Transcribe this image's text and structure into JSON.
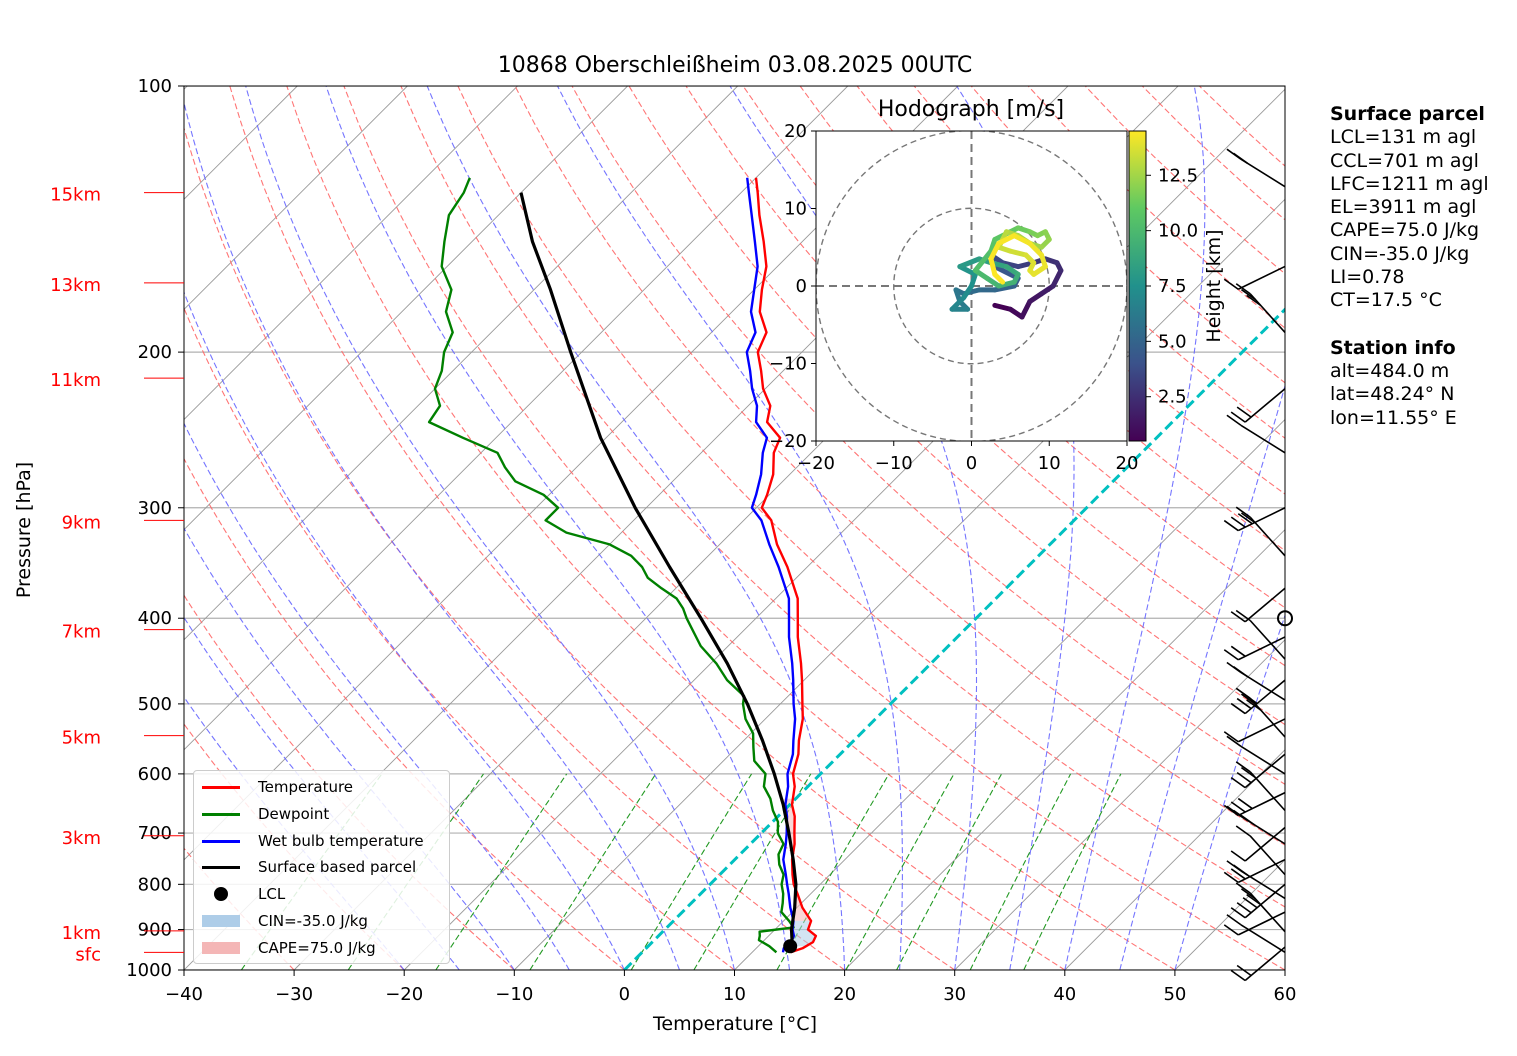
{
  "chart_data": {
    "type": "line",
    "title": "10868 Oberschleißheim 03.08.2025 00UTC",
    "xlabel": "Temperature [°C]",
    "ylabel": "Pressure [hPa]",
    "xlim": [
      -40,
      60
    ],
    "ylim": [
      1000,
      100
    ],
    "y_scale": "log",
    "skew": "skew-T log-p",
    "x_ticks": [
      -40,
      -30,
      -20,
      -10,
      0,
      10,
      20,
      30,
      40,
      50,
      60
    ],
    "x_tick_labels": [
      "−40",
      "−30",
      "−20",
      "−10",
      "0",
      "10",
      "20",
      "30",
      "40",
      "50",
      "60"
    ],
    "y_ticks": [
      100,
      200,
      300,
      400,
      500,
      600,
      700,
      800,
      900,
      1000
    ],
    "y_tick_labels": [
      "100",
      "200",
      "300",
      "400",
      "500",
      "600",
      "700",
      "800",
      "900",
      "1000"
    ],
    "height_labels": [
      {
        "label": "15km",
        "p": 132
      },
      {
        "label": "13km",
        "p": 167
      },
      {
        "label": "11km",
        "p": 214
      },
      {
        "label": "9km",
        "p": 310
      },
      {
        "label": "7km",
        "p": 412
      },
      {
        "label": "5km",
        "p": 543
      },
      {
        "label": "3km",
        "p": 705
      },
      {
        "label": "1km",
        "p": 903
      },
      {
        "label": "sfc",
        "p": 955
      }
    ],
    "grid": true,
    "legend_position": "lower-left",
    "legend": [
      {
        "label": "Temperature",
        "color": "#ff0000",
        "kind": "line"
      },
      {
        "label": "Dewpoint",
        "color": "#008000",
        "kind": "line"
      },
      {
        "label": "Wet bulb temperature",
        "color": "#0000ff",
        "kind": "line"
      },
      {
        "label": "Surface based parcel",
        "color": "#000000",
        "kind": "line"
      },
      {
        "label": "LCL",
        "color": "#000000",
        "kind": "dot"
      },
      {
        "label": "CIN=-35.0 J/kg",
        "color": "#aecde8",
        "kind": "patch"
      },
      {
        "label": "CAPE=75.0 J/kg",
        "color": "#f4b6b6",
        "kind": "patch"
      }
    ],
    "series": [
      {
        "name": "Temperature",
        "color": "#ff0000",
        "points": [
          [
            955,
            13.5
          ],
          [
            945,
            14.2
          ],
          [
            930,
            14.6
          ],
          [
            915,
            14.3
          ],
          [
            900,
            13.0
          ],
          [
            880,
            12.5
          ],
          [
            850,
            10.5
          ],
          [
            820,
            8.8
          ],
          [
            800,
            7.6
          ],
          [
            780,
            6.6
          ],
          [
            750,
            5.2
          ],
          [
            720,
            4.0
          ],
          [
            700,
            3.0
          ],
          [
            670,
            1.5
          ],
          [
            650,
            0.2
          ],
          [
            620,
            -1.2
          ],
          [
            600,
            -2.5
          ],
          [
            570,
            -3.8
          ],
          [
            550,
            -5.0
          ],
          [
            520,
            -6.6
          ],
          [
            500,
            -8.0
          ],
          [
            470,
            -10.2
          ],
          [
            450,
            -11.8
          ],
          [
            420,
            -14.5
          ],
          [
            400,
            -16.2
          ],
          [
            380,
            -18.0
          ],
          [
            350,
            -21.8
          ],
          [
            330,
            -24.8
          ],
          [
            310,
            -27.5
          ],
          [
            300,
            -29.5
          ],
          [
            290,
            -30.2
          ],
          [
            275,
            -31.5
          ],
          [
            260,
            -33.4
          ],
          [
            250,
            -34.2
          ],
          [
            240,
            -36.8
          ],
          [
            230,
            -38.0
          ],
          [
            220,
            -40.2
          ],
          [
            210,
            -42.0
          ],
          [
            200,
            -44.0
          ],
          [
            190,
            -45.0
          ],
          [
            180,
            -47.5
          ],
          [
            170,
            -49.3
          ],
          [
            160,
            -51.0
          ],
          [
            150,
            -53.5
          ],
          [
            140,
            -56.3
          ],
          [
            132,
            -58.5
          ],
          [
            127,
            -60.0
          ]
        ]
      },
      {
        "name": "Dewpoint",
        "color": "#008000",
        "points": [
          [
            955,
            12.2
          ],
          [
            940,
            11.0
          ],
          [
            925,
            9.5
          ],
          [
            915,
            9.2
          ],
          [
            905,
            8.8
          ],
          [
            895,
            11.5
          ],
          [
            880,
            10.5
          ],
          [
            860,
            9.0
          ],
          [
            840,
            8.3
          ],
          [
            820,
            7.5
          ],
          [
            800,
            6.5
          ],
          [
            780,
            5.8
          ],
          [
            760,
            4.5
          ],
          [
            740,
            3.5
          ],
          [
            720,
            3.0
          ],
          [
            700,
            1.5
          ],
          [
            680,
            0.5
          ],
          [
            660,
            -1.0
          ],
          [
            640,
            -2.3
          ],
          [
            620,
            -4.0
          ],
          [
            600,
            -5.0
          ],
          [
            580,
            -7.2
          ],
          [
            560,
            -8.5
          ],
          [
            540,
            -9.8
          ],
          [
            520,
            -11.8
          ],
          [
            500,
            -13.4
          ],
          [
            490,
            -14.0
          ],
          [
            470,
            -17.0
          ],
          [
            450,
            -19.5
          ],
          [
            430,
            -22.5
          ],
          [
            410,
            -25.0
          ],
          [
            400,
            -26.3
          ],
          [
            390,
            -27.5
          ],
          [
            380,
            -29.0
          ],
          [
            370,
            -31.3
          ],
          [
            360,
            -33.5
          ],
          [
            350,
            -35.0
          ],
          [
            340,
            -37.0
          ],
          [
            330,
            -40.0
          ],
          [
            320,
            -45.0
          ],
          [
            310,
            -48.0
          ],
          [
            300,
            -48.0
          ],
          [
            290,
            -50.5
          ],
          [
            280,
            -54.3
          ],
          [
            270,
            -56.5
          ],
          [
            260,
            -58.5
          ],
          [
            250,
            -63.0
          ],
          [
            240,
            -67.5
          ],
          [
            230,
            -68.0
          ],
          [
            220,
            -70.0
          ],
          [
            210,
            -71.0
          ],
          [
            200,
            -72.5
          ],
          [
            190,
            -73.5
          ],
          [
            180,
            -76.0
          ],
          [
            170,
            -77.5
          ],
          [
            160,
            -80.5
          ],
          [
            150,
            -82.5
          ],
          [
            140,
            -84.5
          ],
          [
            132,
            -85.2
          ],
          [
            127,
            -86.0
          ]
        ]
      },
      {
        "name": "Wet bulb temperature",
        "color": "#0000ff",
        "points": [
          [
            955,
            12.8
          ],
          [
            945,
            12.5
          ],
          [
            930,
            12.6
          ],
          [
            915,
            12.3
          ],
          [
            900,
            11.6
          ],
          [
            880,
            10.9
          ],
          [
            850,
            9.4
          ],
          [
            820,
            8.0
          ],
          [
            800,
            7.0
          ],
          [
            780,
            6.0
          ],
          [
            750,
            4.4
          ],
          [
            720,
            3.2
          ],
          [
            700,
            2.3
          ],
          [
            670,
            0.8
          ],
          [
            650,
            -0.4
          ],
          [
            620,
            -1.8
          ],
          [
            600,
            -3.0
          ],
          [
            570,
            -4.3
          ],
          [
            550,
            -5.5
          ],
          [
            520,
            -7.3
          ],
          [
            500,
            -8.8
          ],
          [
            470,
            -11.0
          ],
          [
            450,
            -12.6
          ],
          [
            420,
            -15.3
          ],
          [
            400,
            -17.0
          ],
          [
            380,
            -18.8
          ],
          [
            350,
            -22.6
          ],
          [
            330,
            -25.5
          ],
          [
            310,
            -28.4
          ],
          [
            300,
            -30.4
          ],
          [
            290,
            -31.2
          ],
          [
            275,
            -32.6
          ],
          [
            260,
            -34.4
          ],
          [
            250,
            -35.4
          ],
          [
            240,
            -37.8
          ],
          [
            230,
            -39.2
          ],
          [
            220,
            -41.2
          ],
          [
            210,
            -43.0
          ],
          [
            200,
            -45.0
          ],
          [
            190,
            -46.0
          ],
          [
            180,
            -48.3
          ],
          [
            170,
            -50.0
          ],
          [
            160,
            -51.8
          ],
          [
            150,
            -54.3
          ],
          [
            140,
            -57.0
          ],
          [
            132,
            -59.3
          ],
          [
            127,
            -60.8
          ]
        ]
      },
      {
        "name": "Surface based parcel",
        "color": "#000000",
        "points": [
          [
            955,
            13.5
          ],
          [
            935,
            12.9
          ],
          [
            900,
            11.5
          ],
          [
            850,
            9.8
          ],
          [
            800,
            7.8
          ],
          [
            750,
            5.3
          ],
          [
            700,
            2.5
          ],
          [
            650,
            -0.6
          ],
          [
            600,
            -4.2
          ],
          [
            550,
            -8.3
          ],
          [
            500,
            -13.0
          ],
          [
            450,
            -18.5
          ],
          [
            400,
            -25.0
          ],
          [
            350,
            -32.5
          ],
          [
            300,
            -41.0
          ],
          [
            250,
            -50.5
          ],
          [
            200,
            -61.0
          ],
          [
            170,
            -68.5
          ],
          [
            150,
            -74.5
          ],
          [
            132,
            -80.0
          ]
        ]
      }
    ],
    "lcl": {
      "p": 940,
      "t": 12.9
    },
    "cape_value": "75.0 J/kg",
    "cin_value": "-35.0 J/kg",
    "wind_barbs_p": [
      955,
      942,
      905,
      860,
      830,
      800,
      780,
      750,
      720,
      690,
      660,
      630,
      600,
      570,
      545,
      520,
      495,
      470,
      445,
      420,
      400,
      370,
      340,
      300,
      260,
      220,
      190,
      160,
      130
    ],
    "hodograph": {
      "title": "Hodograph [m/s]",
      "xlim": [
        -20,
        20
      ],
      "ylim": [
        -20,
        20
      ],
      "ticks": [
        -20,
        -10,
        0,
        10,
        20
      ],
      "tick_labels": [
        "−20",
        "−10",
        "0",
        "10",
        "20"
      ],
      "rings": [
        10,
        20
      ],
      "colorbar": {
        "label": "Height [km]",
        "min": 0.5,
        "max": 14.5,
        "ticks": [
          2.5,
          5.0,
          7.5,
          10.0,
          12.5
        ],
        "tick_labels": [
          "2.5",
          "5.0",
          "7.5",
          "10.0",
          "12.5"
        ],
        "cmap": "viridis"
      },
      "u": [
        3.0,
        5.0,
        6.5,
        7.5,
        9.0,
        10.5,
        11.5,
        11.0,
        9.5,
        8.0,
        6.0,
        4.0,
        2.5,
        3.0,
        6.0,
        5.5,
        3.0,
        1.0,
        -1.0,
        -2.0,
        -1.5,
        -0.5,
        -2.5,
        -1.0,
        0.0,
        0.5,
        -1.5,
        1.0,
        2.5,
        4.5,
        6.0,
        5.5,
        3.5,
        2.0,
        0.5,
        2.5,
        3.0,
        5.0,
        6.0,
        7.5,
        8.5,
        9.5,
        10.0,
        9.0,
        7.5,
        6.0,
        4.5,
        4.0,
        3.5,
        5.0,
        7.0,
        8.0,
        7.5,
        8.0,
        9.5,
        9.0,
        7.5,
        5.5,
        3.5,
        2.5,
        3.0,
        4.0
      ],
      "v": [
        -2.5,
        -3.0,
        -4.0,
        -2.0,
        -1.0,
        0.0,
        2.0,
        3.0,
        3.5,
        3.0,
        2.5,
        3.0,
        4.0,
        2.5,
        1.0,
        0.0,
        -0.5,
        -0.5,
        -1.0,
        -0.5,
        -2.0,
        -3.0,
        -3.0,
        -1.5,
        0.0,
        1.5,
        2.5,
        3.5,
        3.0,
        2.5,
        1.5,
        0.5,
        0.0,
        1.0,
        2.0,
        4.5,
        6.0,
        7.0,
        7.5,
        7.0,
        6.5,
        7.0,
        6.0,
        5.0,
        5.5,
        6.5,
        7.0,
        6.0,
        5.0,
        4.5,
        4.0,
        3.0,
        2.0,
        1.5,
        2.5,
        4.0,
        5.5,
        6.5,
        5.5,
        3.5,
        1.5,
        0.5
      ],
      "h": [
        0.5,
        0.8,
        1.1,
        1.4,
        1.7,
        2.0,
        2.3,
        2.6,
        2.9,
        3.1,
        3.4,
        3.7,
        4.0,
        4.3,
        4.6,
        4.9,
        5.2,
        5.4,
        5.7,
        6.0,
        6.3,
        6.6,
        6.9,
        7.2,
        7.5,
        7.7,
        8.0,
        8.3,
        8.6,
        8.9,
        9.2,
        9.5,
        9.7,
        10.0,
        10.3,
        10.6,
        10.8,
        11.1,
        11.3,
        11.6,
        11.8,
        12.0,
        12.2,
        12.4,
        12.6,
        12.8,
        13.0,
        13.2,
        13.4,
        13.5,
        13.7,
        13.8,
        13.9,
        14.0,
        14.1,
        14.2,
        14.3,
        14.4,
        14.4,
        14.5,
        14.5,
        14.5
      ]
    }
  },
  "side_panel": {
    "surface_title": "Surface parcel",
    "lines": [
      "LCL=131 m agl",
      "CCL=701 m agl",
      "LFC=1211 m agl",
      "EL=3911 m agl",
      "CAPE=75.0 J/kg",
      "CIN=-35.0 J/kg",
      "LI=0.78",
      "CT=17.5 °C"
    ],
    "station_title": "Station info",
    "station_lines": [
      "alt=484.0 m",
      "lat=48.24° N",
      "lon=11.55° E"
    ]
  },
  "colors": {
    "dry_adiabat": "#ff6666",
    "moist_adiabat": "#6666ff",
    "mixing_ratio": "#229922",
    "isotherm": "#999999",
    "zero_isotherm": "#00c0c0",
    "height_label": "#ff0000"
  }
}
